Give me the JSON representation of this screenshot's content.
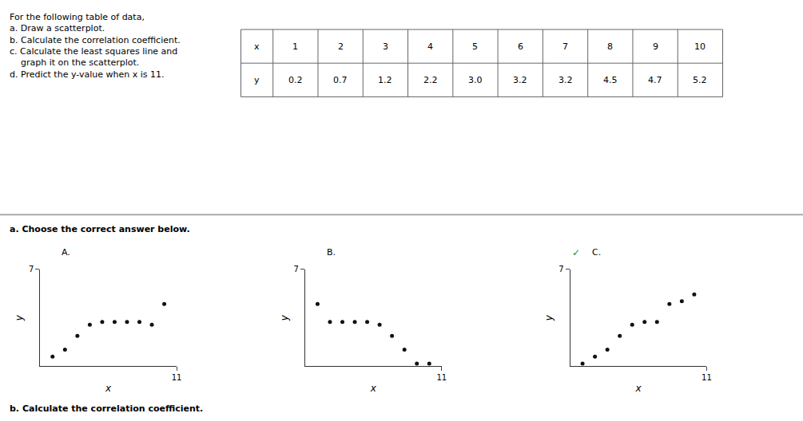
{
  "chart_data": [
    {
      "type": "table",
      "series": [
        {
          "name": "x",
          "values": [
            1,
            2,
            3,
            4,
            5,
            6,
            7,
            8,
            9,
            10
          ]
        },
        {
          "name": "y",
          "values": [
            0.2,
            0.7,
            1.2,
            2.2,
            3.0,
            3.2,
            3.2,
            4.5,
            4.7,
            5.2
          ],
          "value_labels": [
            "0.2",
            "0.7",
            "1.2",
            "2.2",
            "3.0",
            "3.2",
            "3.2",
            "4.5",
            "4.7",
            "5.2"
          ]
        }
      ],
      "annotations": [
        "For the following table of data,",
        "a. Draw a scatterplot.",
        "b. Calculate the correlation coefficient.",
        "c. Calculate the least squares line and",
        "    graph it on the scatterplot.",
        "d. Predict the y-value when x is 11.",
        "a. Choose the correct answer below.",
        "b. Calculate the correlation coefficient."
      ]
    },
    {
      "type": "scatter",
      "title": "A.",
      "x": [
        1,
        2,
        3,
        4,
        5,
        6,
        7,
        8,
        9,
        10
      ],
      "values": [
        0.7,
        1.2,
        2.2,
        3.0,
        3.2,
        3.2,
        3.2,
        3.2,
        3.0,
        4.5
      ],
      "color": "#111111",
      "xlim": [
        0,
        11
      ],
      "ylim": [
        0,
        7
      ],
      "xticks": [
        11
      ],
      "yticks": [
        7
      ],
      "xlabel": "x",
      "ylabel": "y",
      "grid": false
    },
    {
      "type": "scatter",
      "title": "B.",
      "x": [
        1,
        2,
        3,
        4,
        5,
        6,
        7,
        8,
        9,
        10
      ],
      "values": [
        4.5,
        3.2,
        3.2,
        3.2,
        3.2,
        3.0,
        2.2,
        1.2,
        0.2,
        0.2
      ],
      "color": "#111111",
      "xlim": [
        0,
        11
      ],
      "ylim": [
        0,
        7
      ],
      "xticks": [
        11
      ],
      "yticks": [
        7
      ],
      "xlabel": "x",
      "ylabel": "y",
      "grid": false
    },
    {
      "type": "scatter",
      "title": "C.",
      "x": [
        1,
        2,
        3,
        4,
        5,
        6,
        7,
        8,
        9,
        10
      ],
      "values": [
        0.2,
        0.7,
        1.2,
        2.2,
        3.0,
        3.2,
        3.2,
        4.5,
        4.7,
        5.2
      ],
      "color": "#111111",
      "xlim": [
        0,
        11
      ],
      "ylim": [
        0,
        7
      ],
      "xticks": [
        11
      ],
      "yticks": [
        7
      ],
      "xlabel": "x",
      "ylabel": "y",
      "grid": false,
      "annotations": [
        {
          "text": "✓",
          "color": "#228B22"
        }
      ]
    }
  ]
}
